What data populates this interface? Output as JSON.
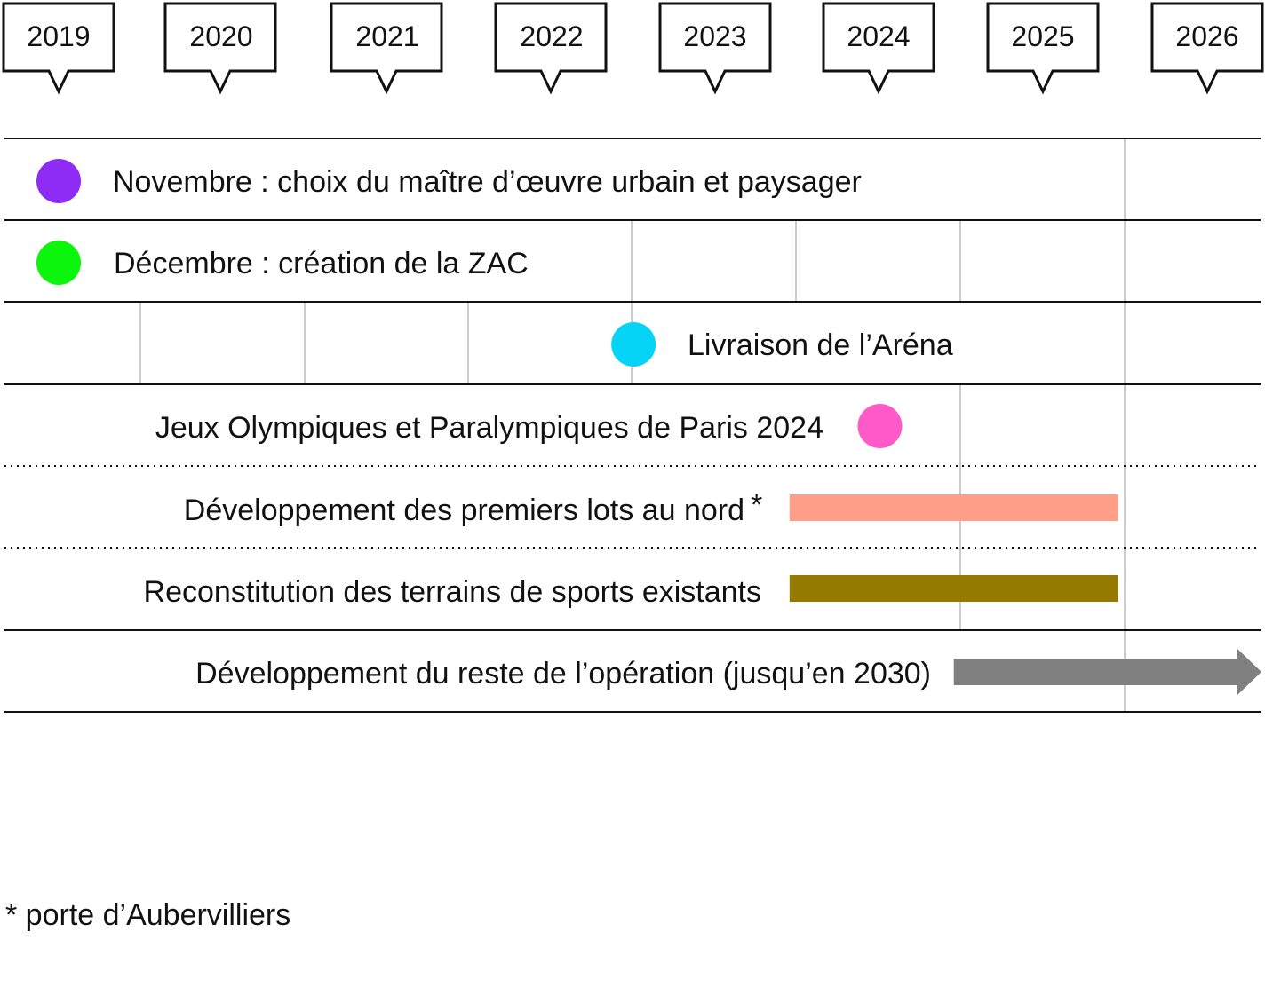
{
  "years": [
    "2019",
    "2020",
    "2021",
    "2022",
    "2023",
    "2024",
    "2025",
    "2026"
  ],
  "rows": [
    {
      "text": "Novembre : choix du maître d’œuvre urbain et paysager",
      "marker": "dot",
      "color": "#8e2cf5",
      "year": 2019.0
    },
    {
      "text": "Décembre : création de la ZAC",
      "marker": "dot",
      "color": "#0cf50c",
      "year": 2019.0
    },
    {
      "text": "Livraison de l’Aréna",
      "marker": "dot",
      "color": "#06d4f7",
      "year": 2022.5
    },
    {
      "text": "Jeux Olympiques et Paralympiques de Paris 2024",
      "marker": "dot",
      "color": "#ff5ac8",
      "year": 2024.0
    },
    {
      "text": "Développement des premiers lots au nord",
      "note_mark": "*",
      "marker": "bar",
      "color": "#ff9f87",
      "start": 2023.45,
      "end": 2025.45
    },
    {
      "text": "Reconstitution des terrains de sports existants",
      "marker": "bar",
      "color": "#957a00",
      "start": 2023.45,
      "end": 2025.45
    },
    {
      "text": "Développement du reste de l’opération (jusqu’en 2030)",
      "marker": "arrow",
      "color": "#808080",
      "start": 2024.45
    }
  ],
  "footnote": "* porte d’Aubervilliers"
}
